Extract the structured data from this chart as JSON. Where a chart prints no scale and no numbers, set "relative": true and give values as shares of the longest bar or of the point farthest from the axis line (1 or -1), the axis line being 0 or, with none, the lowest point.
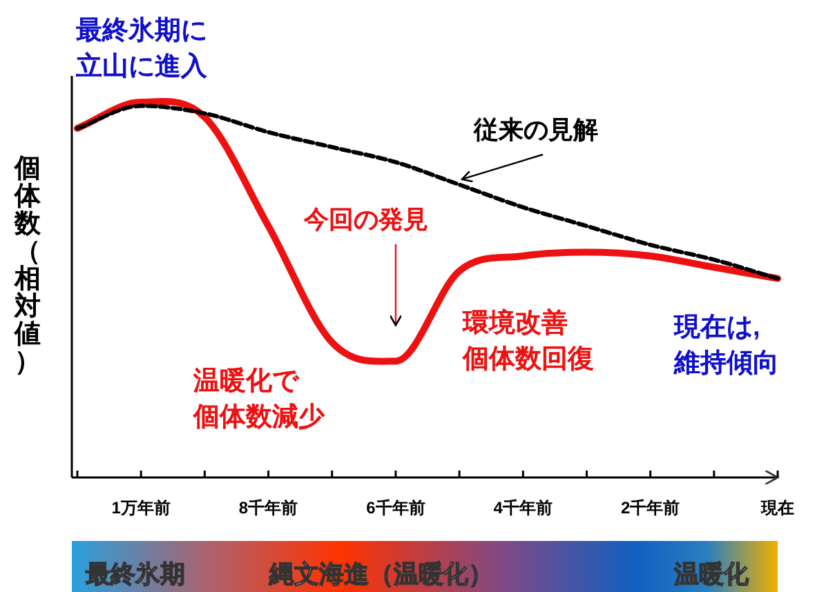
{
  "chart_data": {
    "type": "line",
    "relative": true,
    "ylabel": "個体数（相対値）",
    "categories": [
      null,
      "1万年前",
      null,
      "8千年前",
      null,
      "6千年前",
      null,
      "4千年前",
      null,
      "2千年前",
      null,
      "現在"
    ],
    "series": [
      {
        "name": "従来の見解",
        "color": "#000000",
        "line_style": "dashed",
        "values": [
          0.93,
          0.99,
          0.97,
          0.92,
          0.88,
          0.84,
          0.78,
          0.72,
          0.67,
          0.62,
          0.58,
          0.53
        ]
      },
      {
        "name": "今回の発見",
        "color": "#ee1111",
        "line_style": "solid",
        "values": [
          0.93,
          1.0,
          0.96,
          0.67,
          0.36,
          0.31,
          0.55,
          0.59,
          0.6,
          0.59,
          0.56,
          0.53
        ]
      }
    ],
    "annotations": [
      "最終氷期に",
      "立山に進入",
      "温暖化で",
      "個体数減少",
      "環境改善",
      "個体数回復",
      "現在は,",
      "維持傾向",
      "最終氷期",
      "縄文海進（温暖化）",
      "温暖化"
    ],
    "grid": false
  }
}
